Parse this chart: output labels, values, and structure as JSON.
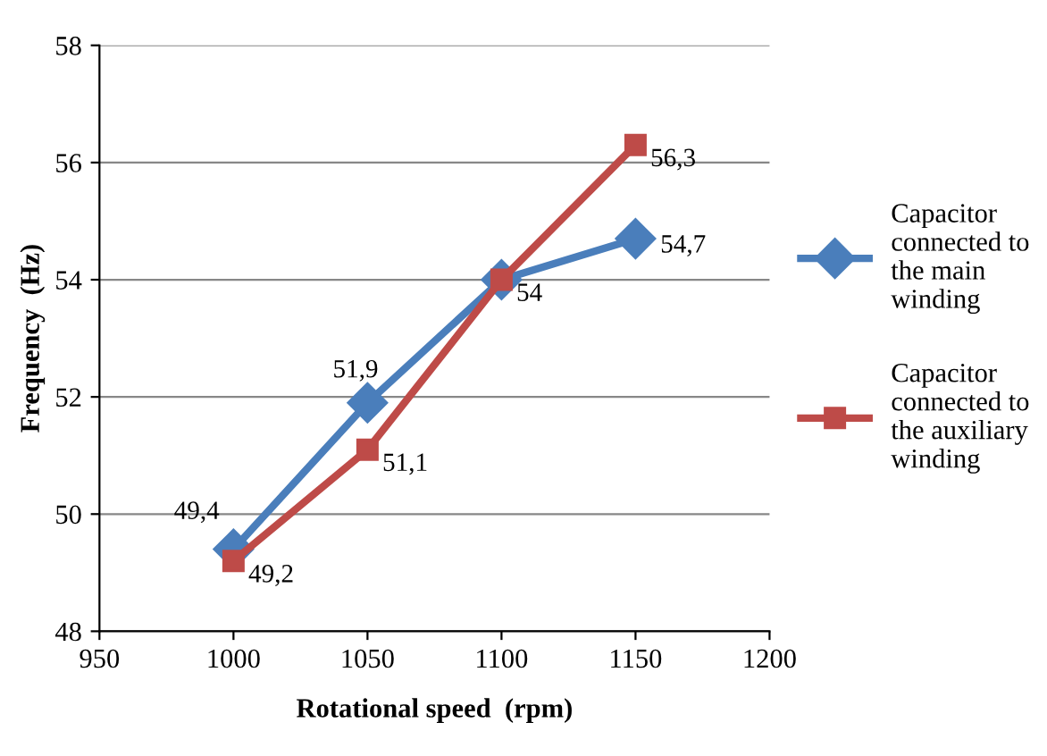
{
  "chart_data": {
    "type": "line",
    "xlabel": "Rotational speed  (rpm)",
    "ylabel": "Frequency  (Hz)",
    "x": [
      1000,
      1050,
      1100,
      1150
    ],
    "series": [
      {
        "name": "Capacitor\nconnected to\nthe main\nwinding",
        "color": "#4a7ebb",
        "marker": "diamond",
        "values": [
          49.4,
          51.9,
          54,
          54.7
        ],
        "value_labels": [
          "49,4",
          "51,9",
          null,
          "54,7"
        ]
      },
      {
        "name": "Capacitor\nconnected to\nthe auxiliary\nwinding",
        "color": "#be4b48",
        "marker": "square",
        "values": [
          49.2,
          51.1,
          54,
          56.3
        ],
        "value_labels": [
          "49,2",
          "51,1",
          "54",
          "56,3"
        ]
      }
    ],
    "xlim": [
      950,
      1200
    ],
    "xticks": [
      950,
      1000,
      1050,
      1100,
      1150,
      1200
    ],
    "ylim": [
      48,
      58
    ],
    "yticks": [
      48,
      50,
      52,
      54,
      56,
      58
    ],
    "grid": "y",
    "legend": "right",
    "line_style": "solid"
  }
}
